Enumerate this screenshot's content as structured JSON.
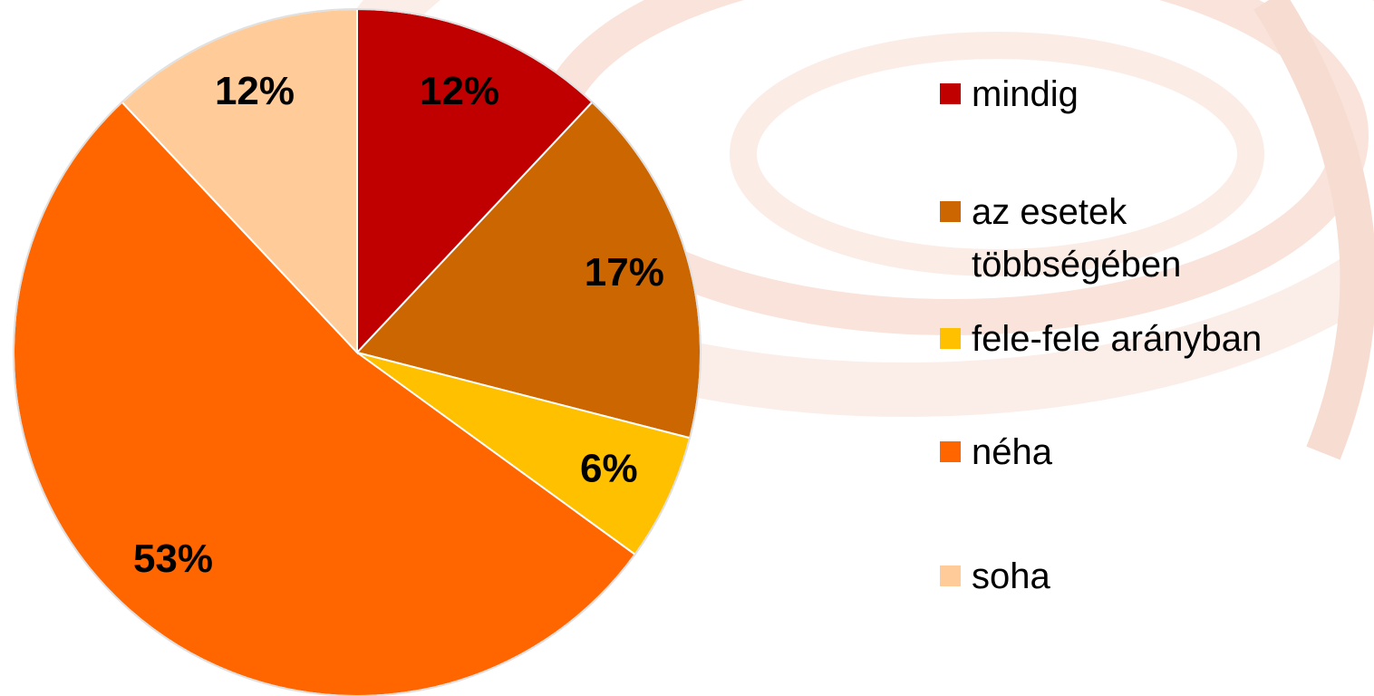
{
  "chart_data": {
    "type": "pie",
    "categories": [
      "mindig",
      "az esetek többségében",
      "fele-fele arányban",
      "néha",
      "soha"
    ],
    "values": [
      12,
      17,
      6,
      53,
      12
    ],
    "value_labels": [
      "12%",
      "17%",
      "6%",
      "53%",
      "12%"
    ],
    "colors": [
      "#c00000",
      "#cc6600",
      "#ffc000",
      "#ff6600",
      "#ffcc99"
    ],
    "legend": "right"
  }
}
